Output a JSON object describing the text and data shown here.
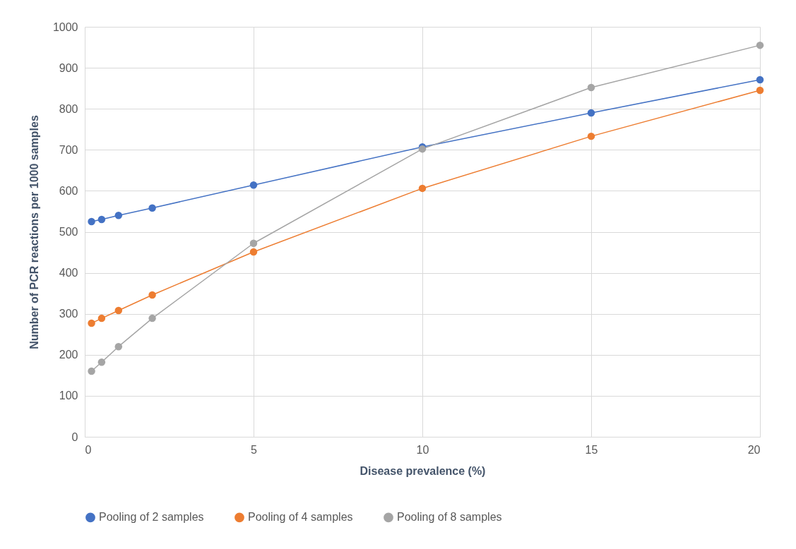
{
  "chart_data": {
    "type": "line",
    "xlabel": "Disease prevalence (%)",
    "ylabel": "Number of PCR reactions per 1000 samples",
    "x": [
      0.2,
      0.5,
      1,
      2,
      5,
      10,
      15,
      20
    ],
    "series": [
      {
        "name": "Pooling of 2 samples",
        "color": "#4472c4",
        "values": [
          525,
          530,
          540,
          558,
          614,
          707,
          790,
          871
        ]
      },
      {
        "name": "Pooling of 4 samples",
        "color": "#ed7d31",
        "values": [
          277,
          289,
          308,
          346,
          451,
          606,
          733,
          845
        ]
      },
      {
        "name": "Pooling of 8 samples",
        "color": "#a5a5a5",
        "values": [
          160,
          182,
          220,
          289,
          472,
          702,
          852,
          955
        ]
      }
    ],
    "xlim": [
      0,
      20
    ],
    "xticks": [
      0,
      5,
      10,
      15,
      20
    ],
    "ylim": [
      0,
      1000
    ],
    "yticks": [
      0,
      100,
      200,
      300,
      400,
      500,
      600,
      700,
      800,
      900,
      1000
    ],
    "grid": true,
    "legend": "bottom",
    "marker": "circle",
    "line_style": "solid"
  }
}
